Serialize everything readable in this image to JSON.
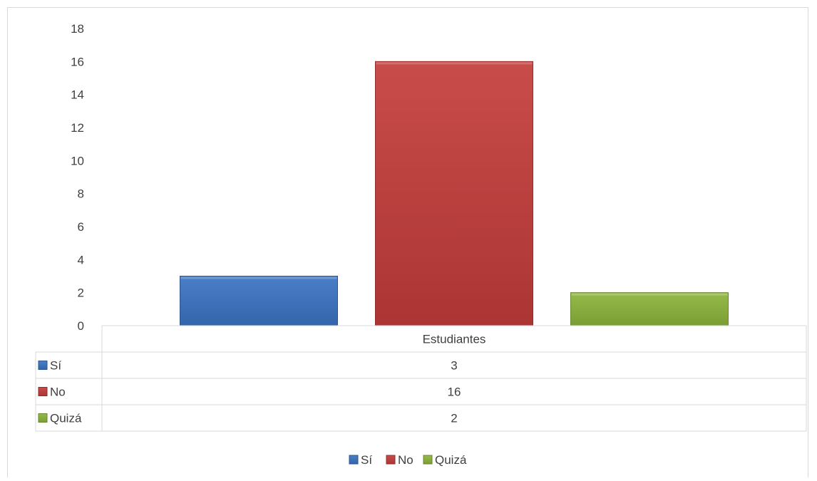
{
  "chart_data": {
    "type": "bar",
    "title": "",
    "xlabel": "",
    "ylabel": "",
    "categories": [
      "Estudiantes"
    ],
    "series": [
      {
        "name": "Sí",
        "values": [
          3
        ],
        "color": "#3a73c2"
      },
      {
        "name": "No",
        "values": [
          16
        ],
        "color": "#c33c3a"
      },
      {
        "name": "Quizá",
        "values": [
          2
        ],
        "color": "#8cb43a"
      }
    ],
    "ylim": [
      0,
      18
    ],
    "yticks": [
      "0",
      "2",
      "4",
      "6",
      "8",
      "10",
      "12",
      "14",
      "16",
      "18"
    ],
    "grid": false,
    "data_table": true,
    "legend_position": "bottom"
  }
}
